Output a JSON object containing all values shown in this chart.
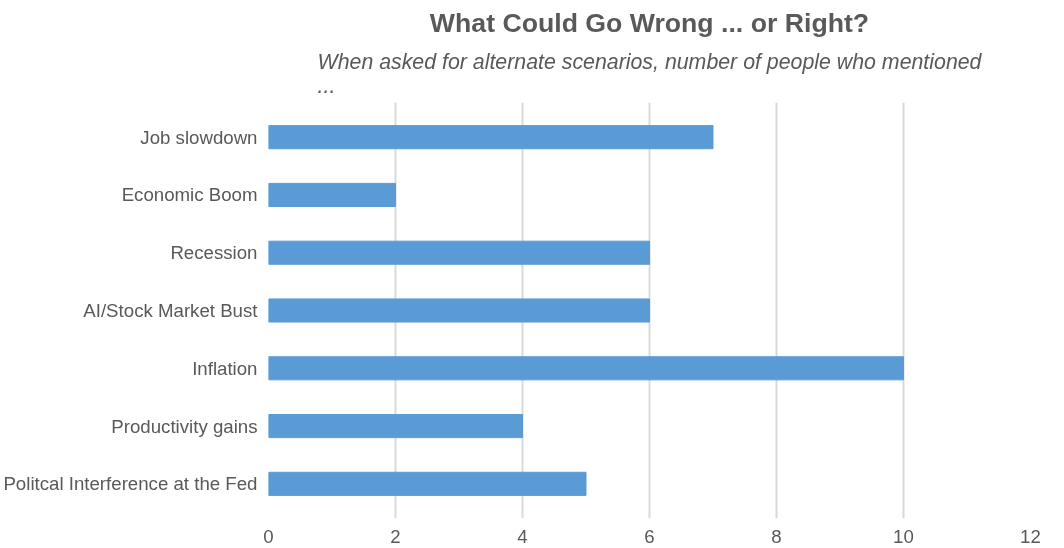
{
  "chart_data": {
    "type": "bar",
    "orientation": "horizontal",
    "title": "What Could Go Wrong ... or Right?",
    "subtitle": "When asked for alternate scenarios, number of people who mentioned ...",
    "categories": [
      "Job slowdown",
      "Economic Boom",
      "Recession",
      "AI/Stock Market Bust",
      "Inflation",
      "Productivity gains",
      "Politcal Interference at the Fed"
    ],
    "values": [
      7,
      2,
      6,
      6,
      10,
      4,
      5
    ],
    "color": "#5b9bd5",
    "xlim": [
      0,
      12
    ],
    "xticks": [
      0,
      2,
      4,
      6,
      8,
      10,
      12
    ],
    "grid": "x"
  }
}
